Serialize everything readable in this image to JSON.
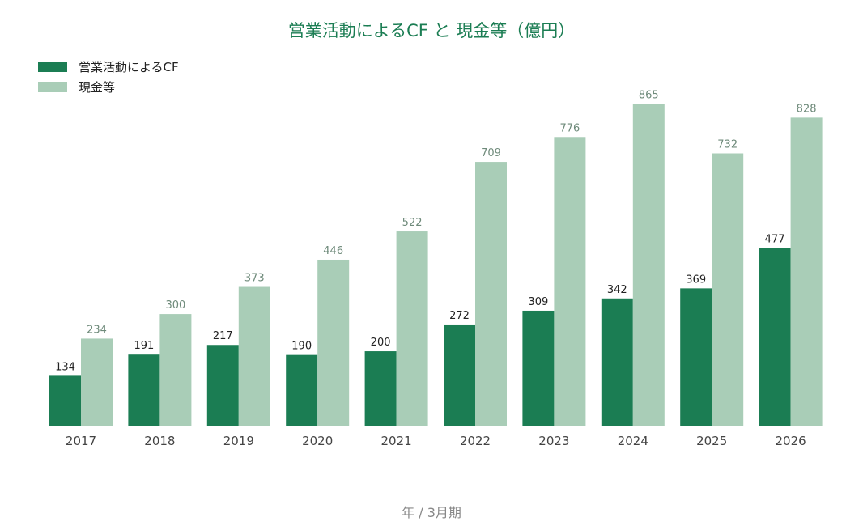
{
  "colors": {
    "operating_cf": "#1b7d53",
    "cash": "#a9cdb7",
    "title": "#1b7d53"
  },
  "chart_data": {
    "type": "bar",
    "title": "営業活動によるCF と 現金等（億円）",
    "xlabel": "年 / 3月期",
    "ylabel": "",
    "ylim": [
      0,
      900
    ],
    "grid": false,
    "legend_position": "top-left",
    "categories": [
      "2017",
      "2018",
      "2019",
      "2020",
      "2021",
      "2022",
      "2023",
      "2024",
      "2025",
      "2026"
    ],
    "series": [
      {
        "name": "営業活動によるCF",
        "color": "#1b7d53",
        "values": [
          134,
          191,
          217,
          190,
          200,
          272,
          309,
          342,
          369,
          477
        ]
      },
      {
        "name": "現金等",
        "color": "#a9cdb7",
        "values": [
          234,
          300,
          373,
          446,
          522,
          709,
          776,
          865,
          732,
          828
        ]
      }
    ]
  }
}
